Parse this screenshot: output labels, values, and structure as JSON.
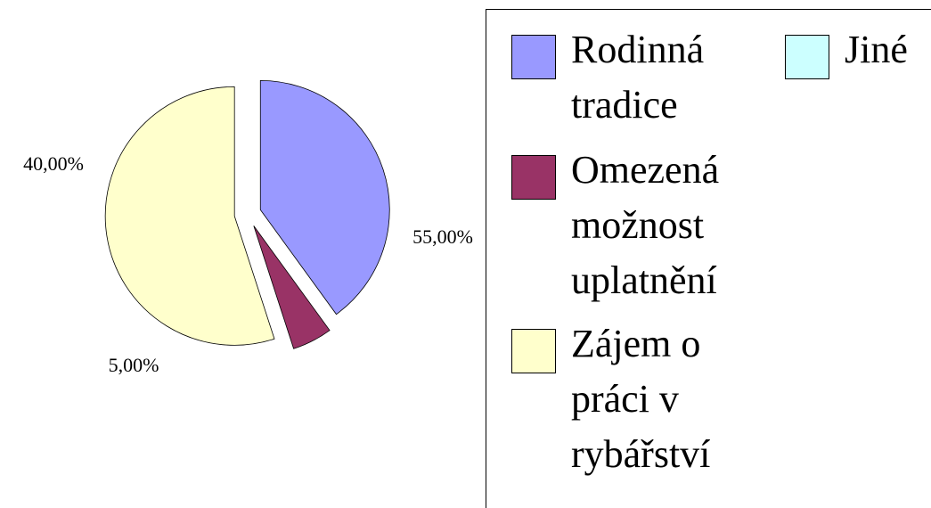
{
  "chart_data": {
    "type": "pie",
    "categories": [
      "Rodinná tradice",
      "Omezená možnost uplatnění",
      "Zájem o práci v rybářství",
      "Jiné"
    ],
    "values": [
      40,
      5,
      55,
      0
    ],
    "value_labels": [
      "40,00%",
      "5,00%",
      "55,00%",
      null
    ],
    "colors": [
      "#9999ff",
      "#993366",
      "#ffffcc",
      "#ccffff"
    ],
    "legend": "right"
  }
}
